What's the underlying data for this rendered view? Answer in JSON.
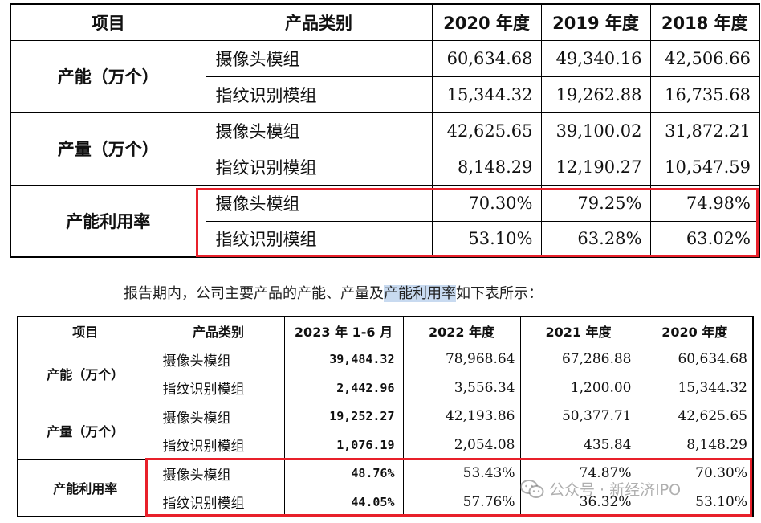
{
  "table1": {
    "headers": [
      "项目",
      "产品类别",
      "2020 年度",
      "2019 年度",
      "2018 年度"
    ],
    "groups": [
      {
        "label": "产能（万个）",
        "rows": [
          {
            "category": "摄像头模组",
            "values": [
              "60,634.68",
              "49,340.16",
              "42,506.66"
            ]
          },
          {
            "category": "指纹识别模组",
            "values": [
              "15,344.32",
              "19,262.88",
              "16,735.68"
            ]
          }
        ]
      },
      {
        "label": "产量（万个）",
        "rows": [
          {
            "category": "摄像头模组",
            "values": [
              "42,625.65",
              "39,100.02",
              "31,872.21"
            ]
          },
          {
            "category": "指纹识别模组",
            "values": [
              "8,148.29",
              "12,190.27",
              "10,547.59"
            ]
          }
        ]
      },
      {
        "label": "产能利用率",
        "rows": [
          {
            "category": "摄像头模组",
            "values": [
              "70.30%",
              "79.25%",
              "74.98%"
            ]
          },
          {
            "category": "指纹识别模组",
            "values": [
              "53.10%",
              "63.28%",
              "63.02%"
            ]
          }
        ]
      }
    ]
  },
  "caption": {
    "before": "报告期内，公司主要产品的产能、产量及",
    "highlight": "产能利用率",
    "after": "如下表所示："
  },
  "table2": {
    "headers": [
      "项目",
      "产品类别",
      "2023 年 1-6 月",
      "2022 年度",
      "2021 年度",
      "2020 年度"
    ],
    "groups": [
      {
        "label": "产能（万个）",
        "rows": [
          {
            "category": "摄像头模组",
            "values": [
              "39,484.32",
              "78,968.64",
              "67,286.88",
              "60,634.68"
            ]
          },
          {
            "category": "指纹识别模组",
            "values": [
              "2,442.96",
              "3,556.34",
              "1,200.00",
              "15,344.32"
            ]
          }
        ]
      },
      {
        "label": "产量（万个）",
        "rows": [
          {
            "category": "摄像头模组",
            "values": [
              "19,252.27",
              "42,193.86",
              "50,377.71",
              "42,625.65"
            ]
          },
          {
            "category": "指纹识别模组",
            "values": [
              "1,076.19",
              "2,054.08",
              "435.84",
              "8,148.29"
            ]
          }
        ]
      },
      {
        "label": "产能利用率",
        "rows": [
          {
            "category": "摄像头模组",
            "values": [
              "48.76%",
              "53.43%",
              "74.87%",
              "70.30%"
            ]
          },
          {
            "category": "指纹识别模组",
            "values": [
              "44.05%",
              "57.76%",
              "36.32%",
              "53.10%"
            ]
          }
        ]
      }
    ]
  },
  "watermark": {
    "icon": "wechat-icon",
    "text": "公众号 · 新经济IPO"
  },
  "colors": {
    "highlight_box": "#e8202a",
    "caption_highlight": "#c8daf0"
  }
}
